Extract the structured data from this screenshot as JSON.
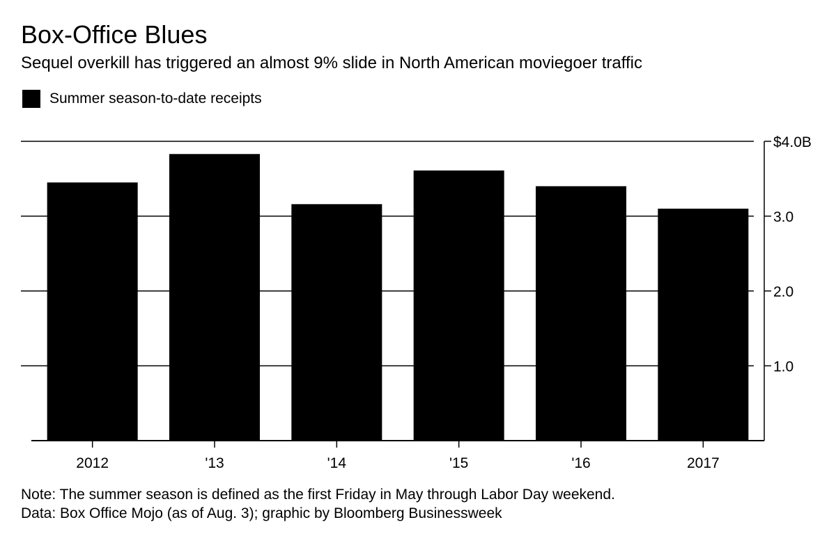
{
  "header": {
    "title": "Box-Office Blues",
    "subtitle": "Sequel overkill has triggered an almost 9% slide in North American moviegoer traffic"
  },
  "legend": {
    "label": "Summer season-to-date receipts",
    "color": "#000000"
  },
  "footer": {
    "note": "Note: The summer season is defined as the first Friday in May through Labor Day weekend.",
    "source": "Data: Box Office Mojo (as of Aug. 3); graphic by Bloomberg Businessweek"
  },
  "chart_data": {
    "type": "bar",
    "categories": [
      "2012",
      "'13",
      "'14",
      "'15",
      "'16",
      "2017"
    ],
    "series": [
      {
        "name": "Summer season-to-date receipts",
        "values": [
          3.45,
          3.83,
          3.16,
          3.61,
          3.4,
          3.1
        ]
      }
    ],
    "ylim": [
      0,
      4
    ],
    "yticks": [
      1,
      2,
      3,
      4
    ],
    "ytick_labels": [
      "1.0",
      "2.0",
      "3.0",
      "$4.0B"
    ],
    "y_axis_side": "right",
    "grid": true,
    "legend_position": "top-left",
    "bar_color": "#000000",
    "grid_color": "#000000"
  }
}
